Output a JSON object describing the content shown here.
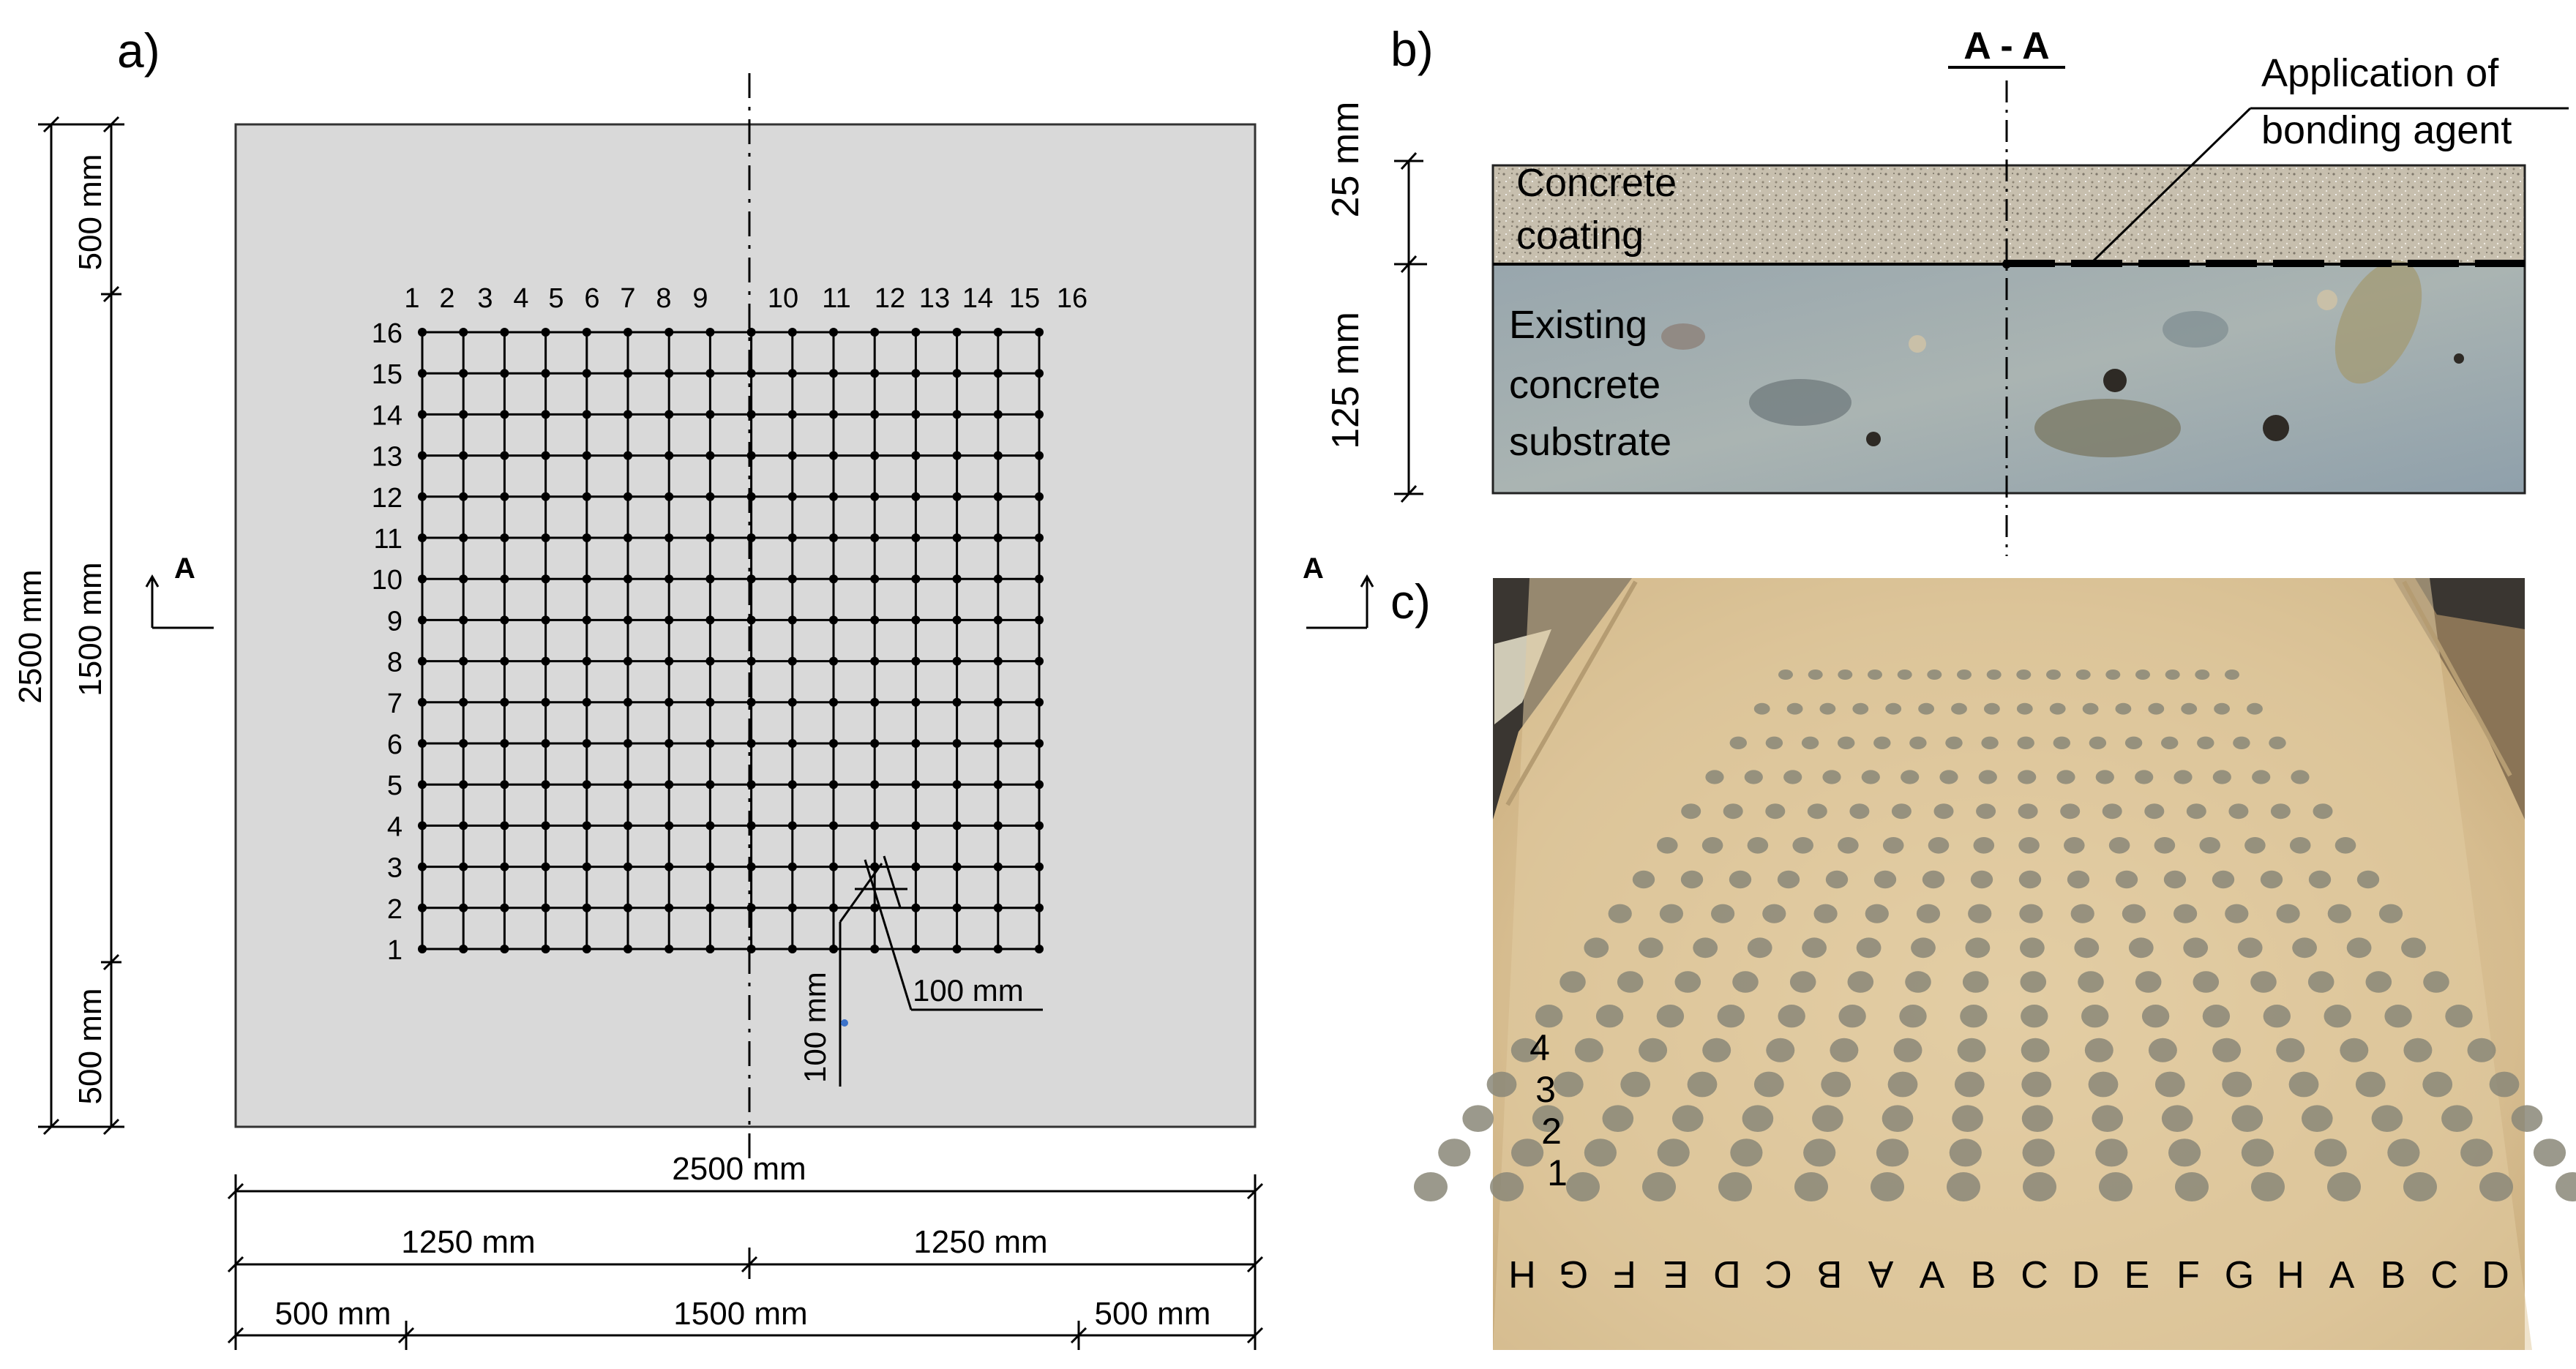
{
  "panels": {
    "a": {
      "label": "a)",
      "grid_col_labels": [
        "1",
        "2",
        "3",
        "4",
        "5",
        "6",
        "7",
        "8",
        "9",
        "10",
        "11",
        "12",
        "13",
        "14",
        "15",
        "16"
      ],
      "grid_row_labels": [
        "1",
        "2",
        "3",
        "4",
        "5",
        "6",
        "7",
        "8",
        "9",
        "10",
        "11",
        "12",
        "13",
        "14",
        "15",
        "16"
      ],
      "dimensions": {
        "total_width": "2500 mm",
        "half_left": "1250 mm",
        "half_right": "1250 mm",
        "margin_left": "500 mm",
        "grid_span_h": "1500 mm",
        "margin_right": "500 mm",
        "total_height": "2500 mm",
        "margin_top": "500 mm",
        "grid_span_v": "1500 mm",
        "margin_bottom": "500 mm",
        "spacing_h": "100 mm",
        "spacing_v": "100 mm"
      },
      "section_marker": "A"
    },
    "b": {
      "label": "b)",
      "section_title": "A - A",
      "coating_label_line1": "Concrete",
      "coating_label_line2": "coating",
      "substrate_label_line1": "Existing",
      "substrate_label_line2": "concrete",
      "substrate_label_line3": "substrate",
      "bonding_label_line1": "Application of",
      "bonding_label_line2": "bonding agent",
      "coating_thickness": "25 mm",
      "substrate_thickness": "125 mm"
    },
    "c": {
      "label": "c)",
      "section_marker": "A",
      "bottom_letters": [
        "H",
        "G",
        "F",
        "E",
        "D",
        "C",
        "B",
        "A",
        "A",
        "B",
        "C",
        "D",
        "E",
        "F",
        "G",
        "H",
        "A",
        "B",
        "C",
        "D"
      ],
      "side_numbers": [
        "1",
        "2",
        "3",
        "4"
      ],
      "colors": {
        "slab": "#d9c39f",
        "dots": "#8a8778"
      }
    }
  }
}
